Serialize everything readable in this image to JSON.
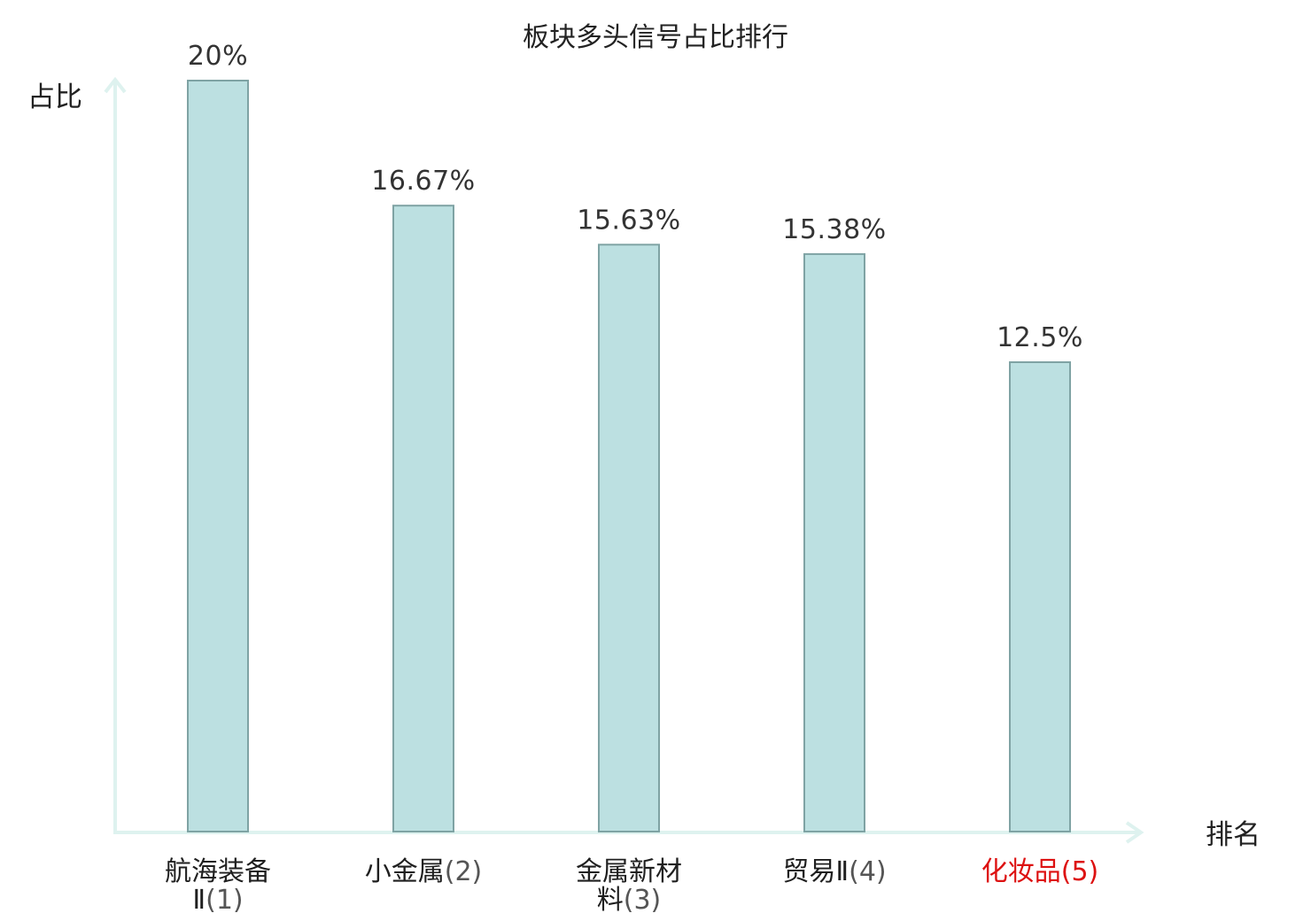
{
  "chart_data": {
    "type": "bar",
    "title": "板块多头信号占比排行",
    "ylabel": "占比",
    "xlabel": "排名",
    "unit": "%",
    "ylim": [
      0,
      20
    ],
    "grid": false,
    "categories": [
      {
        "name_lines": [
          "航海装备",
          "Ⅱ"
        ],
        "rank": "(1)",
        "highlight": false
      },
      {
        "name_lines": [
          "小金属"
        ],
        "rank": "(2)",
        "highlight": false
      },
      {
        "name_lines": [
          "金属新材",
          "料"
        ],
        "rank": "(3)",
        "highlight": false
      },
      {
        "name_lines": [
          "贸易Ⅱ"
        ],
        "rank": "(4)",
        "highlight": false
      },
      {
        "name_lines": [
          "化妆品"
        ],
        "rank": "(5)",
        "highlight": true
      }
    ],
    "values": [
      20,
      16.67,
      15.63,
      15.38,
      12.5
    ],
    "value_labels": [
      "20%",
      "16.67%",
      "15.63%",
      "15.38%",
      "12.5%"
    ]
  },
  "colors": {
    "bar_fill": "#bce0e1",
    "bar_stroke": "#7fa3a4",
    "axis": "#def2ef",
    "highlight": "#dd1111"
  }
}
